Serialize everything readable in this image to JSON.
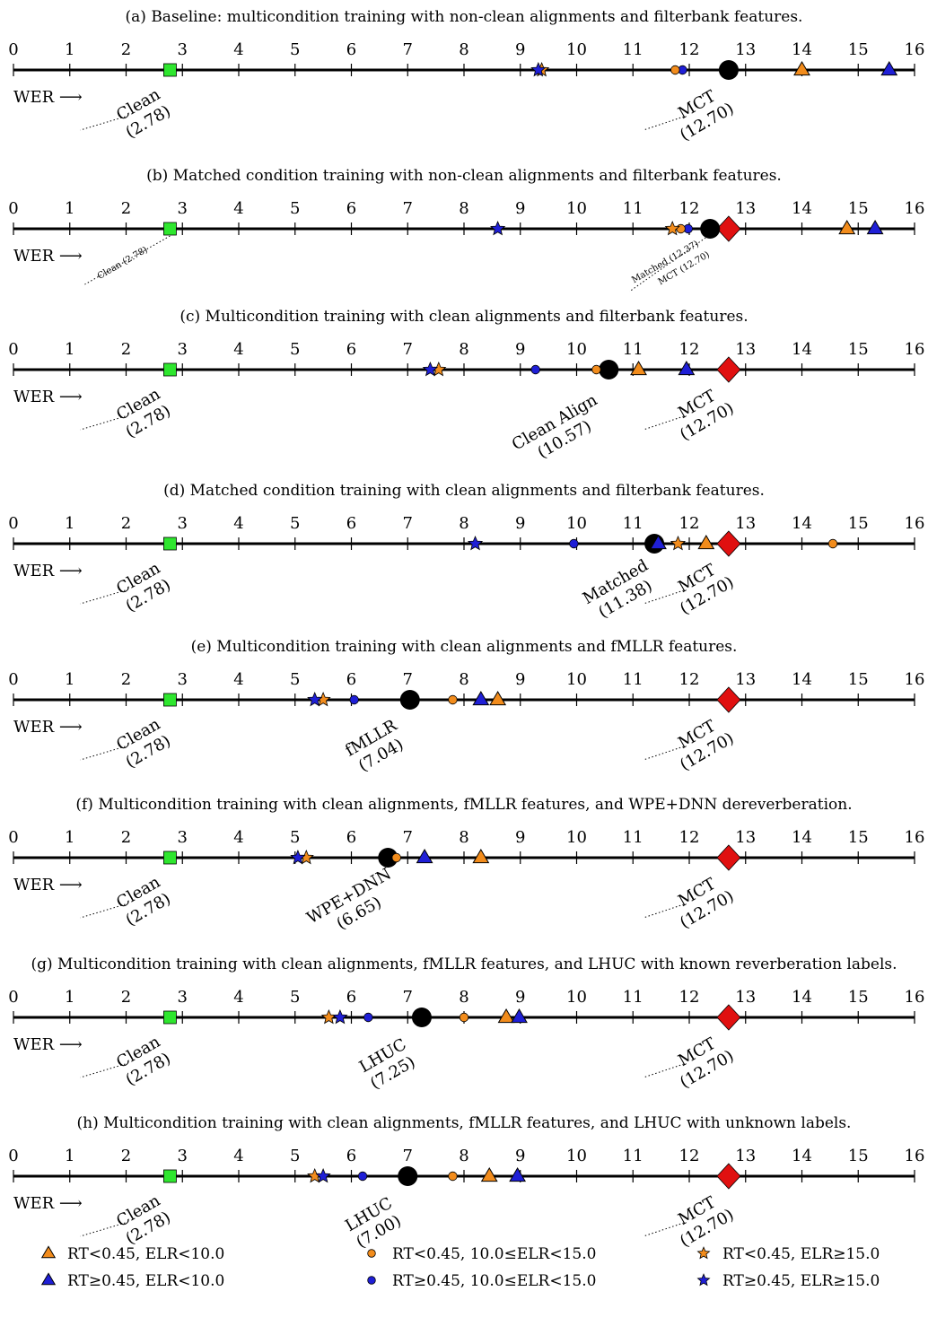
{
  "chart_data": {
    "type": "scatter",
    "axis_label": "WER ⟶",
    "xlim": [
      0,
      16
    ],
    "ticks": [
      "0",
      "1",
      "2",
      "3",
      "4",
      "5",
      "6",
      "7",
      "8",
      "9",
      "10",
      "11",
      "12",
      "13",
      "14",
      "15",
      "16"
    ],
    "categories": [
      {
        "key": "tri_o",
        "label": "RT<0.45, ELR<10.0",
        "marker": "triangle",
        "color": "#f28c1c"
      },
      {
        "key": "tri_b",
        "label": "RT≥0.45, ELR<10.0",
        "marker": "triangle",
        "color": "#1f1fd6"
      },
      {
        "key": "cir_o",
        "label": "RT<0.45, 10.0≤ELR<15.0",
        "marker": "circle",
        "color": "#f28c1c"
      },
      {
        "key": "cir_b",
        "label": "RT≥0.45, 10.0≤ELR<15.0",
        "marker": "circle",
        "color": "#1f1fd6"
      },
      {
        "key": "star_o",
        "label": "RT<0.45, ELR≥15.0",
        "marker": "star",
        "color": "#f28c1c"
      },
      {
        "key": "star_b",
        "label": "RT≥0.45, ELR≥15.0",
        "marker": "star",
        "color": "#1f1fd6"
      }
    ],
    "reference_colors": {
      "clean": "#2ee62e",
      "mct": "#e01010",
      "system": "#000000"
    },
    "panels": [
      {
        "title": "(a) Baseline: multicondition training with non-clean alignments and filterbank features.",
        "clean": {
          "value": 2.78,
          "lines": [
            "Clean",
            "(2.78)"
          ]
        },
        "mct": {
          "value": 12.7,
          "lines": [
            "MCT",
            "(12.70)"
          ],
          "marker": "circle"
        },
        "system": null,
        "points": {
          "tri_o": 14.0,
          "tri_b": 15.55,
          "cir_o": 11.75,
          "cir_b": 11.88,
          "star_o": 9.38,
          "star_b": 9.32
        }
      },
      {
        "title": "(b) Matched condition training with non-clean alignments and filterbank features.",
        "clean": {
          "value": 2.78,
          "lines": [
            "Clean (2.78)"
          ],
          "small": true
        },
        "mct": {
          "value": 12.7,
          "lines": [
            "MCT (12.70)"
          ],
          "marker": "diamond"
        },
        "system": {
          "value": 12.37,
          "lines": [
            "Matched (12.37)"
          ],
          "small": true
        },
        "points": {
          "tri_o": 14.8,
          "tri_b": 15.3,
          "cir_o": 11.85,
          "cir_b": 11.98,
          "star_o": 11.7,
          "star_b": 8.6
        }
      },
      {
        "title": "(c) Multicondition training with clean alignments and filterbank features.",
        "clean": {
          "value": 2.78,
          "lines": [
            "Clean",
            "(2.78)"
          ]
        },
        "mct": {
          "value": 12.7,
          "lines": [
            "MCT",
            "(12.70)"
          ],
          "marker": "diamond"
        },
        "system": {
          "value": 10.57,
          "lines": [
            "Clean Align",
            "(10.57)"
          ]
        },
        "points": {
          "tri_o": 11.1,
          "tri_b": 11.95,
          "cir_o": 10.35,
          "cir_b": 9.27,
          "star_o": 7.55,
          "star_b": 7.4
        }
      },
      {
        "title": "(d) Matched condition training with clean alignments and filterbank features.",
        "clean": {
          "value": 2.78,
          "lines": [
            "Clean",
            "(2.78)"
          ]
        },
        "mct": {
          "value": 12.7,
          "lines": [
            "MCT",
            "(12.70)"
          ],
          "marker": "diamond"
        },
        "system": {
          "value": 11.38,
          "lines": [
            "Matched",
            "(11.38)"
          ]
        },
        "points": {
          "tri_o": 12.3,
          "tri_b": 11.45,
          "cir_o": 14.55,
          "cir_b": 9.95,
          "star_o": 11.8,
          "star_b": 8.2
        }
      },
      {
        "title": "(e) Multicondition training with clean alignments and fMLLR features.",
        "clean": {
          "value": 2.78,
          "lines": [
            "Clean",
            "(2.78)"
          ]
        },
        "mct": {
          "value": 12.7,
          "lines": [
            "MCT",
            "(12.70)"
          ],
          "marker": "diamond"
        },
        "system": {
          "value": 7.04,
          "lines": [
            "fMLLR",
            "(7.04)"
          ]
        },
        "points": {
          "tri_o": 8.6,
          "tri_b": 8.3,
          "cir_o": 7.8,
          "cir_b": 6.05,
          "star_o": 5.5,
          "star_b": 5.35
        }
      },
      {
        "title": "(f) Multicondition training with clean alignments, fMLLR features, and WPE+DNN dereverberation.",
        "clean": {
          "value": 2.78,
          "lines": [
            "Clean",
            "(2.78)"
          ]
        },
        "mct": {
          "value": 12.7,
          "lines": [
            "MCT",
            "(12.70)"
          ],
          "marker": "diamond"
        },
        "system": {
          "value": 6.65,
          "lines": [
            "WPE+DNN",
            "(6.65)"
          ]
        },
        "points": {
          "tri_o": 8.3,
          "tri_b": 7.3,
          "cir_o": 6.8,
          "cir_b": null,
          "star_o": 5.2,
          "star_b": 5.05
        }
      },
      {
        "title": "(g) Multicondition training with clean alignments, fMLLR features, and LHUC with known reverberation labels.",
        "clean": {
          "value": 2.78,
          "lines": [
            "Clean",
            "(2.78)"
          ]
        },
        "mct": {
          "value": 12.7,
          "lines": [
            "MCT",
            "(12.70)"
          ],
          "marker": "diamond"
        },
        "system": {
          "value": 7.25,
          "lines": [
            "LHUC",
            "(7.25)"
          ]
        },
        "points": {
          "tri_o": 8.75,
          "tri_b": 8.98,
          "cir_o": 8.0,
          "cir_b": 6.3,
          "star_o": 5.6,
          "star_b": 5.8
        }
      },
      {
        "title": "(h) Multicondition training with clean alignments, fMLLR features, and LHUC with unknown labels.",
        "clean": {
          "value": 2.78,
          "lines": [
            "Clean",
            "(2.78)"
          ]
        },
        "mct": {
          "value": 12.7,
          "lines": [
            "MCT",
            "(12.70)"
          ],
          "marker": "diamond"
        },
        "system": {
          "value": 7.0,
          "lines": [
            "LHUC",
            "(7.00)"
          ]
        },
        "points": {
          "tri_o": 8.45,
          "tri_b": 8.95,
          "cir_o": 7.8,
          "cir_b": 6.2,
          "star_o": 5.35,
          "star_b": 5.5
        }
      }
    ]
  }
}
